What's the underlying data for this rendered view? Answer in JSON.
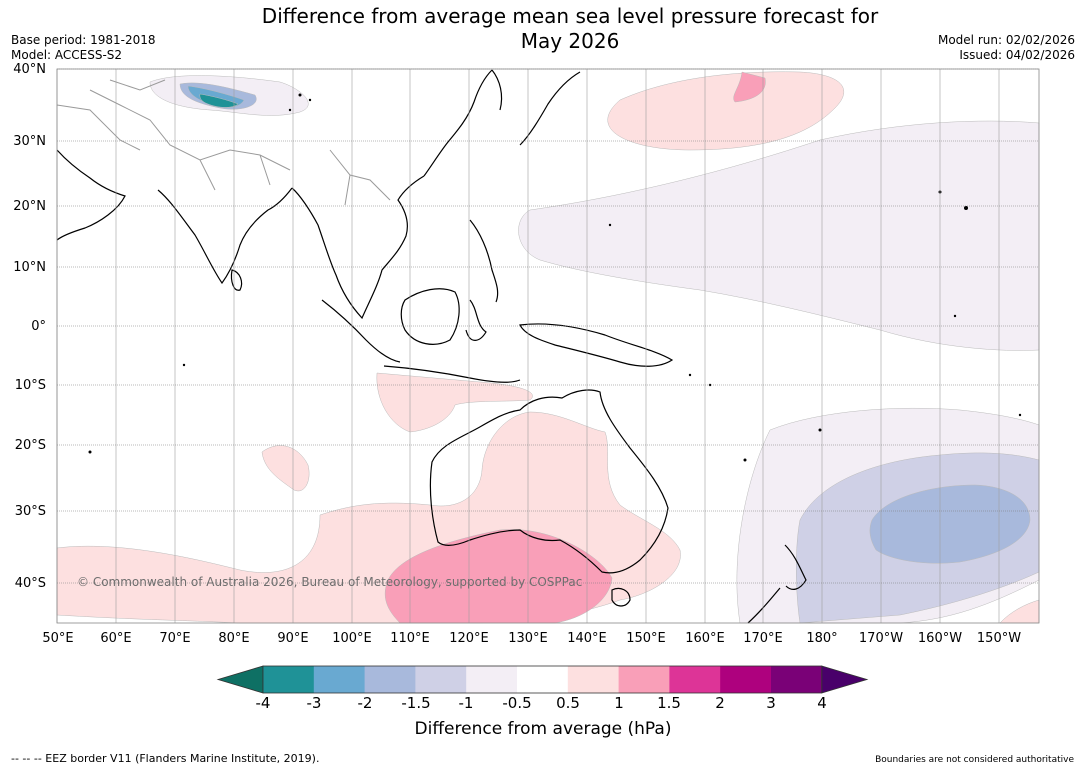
{
  "header": {
    "title_line1": "Difference from average mean sea level pressure forecast for",
    "title_line2": "May 2026",
    "base_period": "Base period: 1981-2018",
    "model": "Model: ACCESS-S2",
    "model_run": "Model run: 02/02/2026",
    "issued": "Issued: 04/02/2026"
  },
  "map": {
    "lat_labels": [
      "40°N",
      "30°N",
      "20°N",
      "10°N",
      "0°",
      "10°S",
      "20°S",
      "30°S",
      "40°S"
    ],
    "lon_labels": [
      "50°E",
      "60°E",
      "70°E",
      "80°E",
      "90°E",
      "100°E",
      "110°E",
      "120°E",
      "130°E",
      "140°E",
      "150°E",
      "160°E",
      "170°E",
      "180°",
      "170°W",
      "160°W",
      "150°W"
    ],
    "copyright": "© Commonwealth of Australia 2026, Bureau of Meteorology, supported by COSPPac",
    "anomaly_colors": {
      "neg_4": "#0e7064",
      "neg_3": "#1f9297",
      "neg_2": "#69a9d1",
      "neg_1_5": "#a8b9dc",
      "neg_1": "#cfd0e6",
      "neg_0_5": "#f3eef5",
      "neutral": "#ffffff",
      "pos_0_5": "#fde0e0",
      "pos_1": "#f99fb8",
      "pos_1_5": "#dd3497",
      "pos_2": "#ae017e",
      "pos_3": "#7a0177",
      "pos_4": "#49006a"
    }
  },
  "colorbar": {
    "tick_labels": [
      "-4",
      "-3",
      "-2",
      "-1.5",
      "-1",
      "-0.5",
      "0.5",
      "1",
      "1.5",
      "2",
      "3",
      "4"
    ],
    "title": "Difference from average (hPa)",
    "colors": [
      "#0e7064",
      "#1f9297",
      "#69a9d1",
      "#a8b9dc",
      "#cfd0e6",
      "#f3eef5",
      "#ffffff",
      "#fde0e0",
      "#f99fb8",
      "#dd3497",
      "#ae017e",
      "#7a0177",
      "#49006a"
    ]
  },
  "footer": {
    "eez_legend": "--  --  -- EEZ border V11 (Flanders Marine Institute, 2019).",
    "disclaimer": "Boundaries are not considered authoritative"
  }
}
